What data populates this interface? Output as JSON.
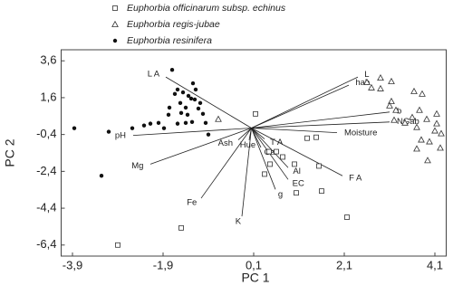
{
  "chart_data": {
    "type": "scatter",
    "x_label": "PC 1",
    "y_label": "PC 2",
    "xlim": [
      -4.15,
      4.35
    ],
    "ylim": [
      -7.0,
      4.2
    ],
    "xticks": [
      {
        "value": -3.9,
        "label": "-3,9"
      },
      {
        "value": -1.9,
        "label": "-1,9"
      },
      {
        "value": 0.1,
        "label": "0,1"
      },
      {
        "value": 2.1,
        "label": "2,1"
      },
      {
        "value": 4.1,
        "label": "4,1"
      }
    ],
    "yticks": [
      {
        "value": 3.6,
        "label": "3,6"
      },
      {
        "value": 1.6,
        "label": "1,6"
      },
      {
        "value": -0.4,
        "label": "-0,4"
      },
      {
        "value": -2.4,
        "label": "-2,4"
      },
      {
        "value": -4.4,
        "label": "-4,4"
      },
      {
        "value": -6.4,
        "label": "-6,4"
      }
    ],
    "series": [
      {
        "name": "Euphorbia officinarum subsp. echinus",
        "marker": "square",
        "color": "#333333",
        "x": [
          -2.9,
          -1.5,
          0.14,
          1.28,
          1.48,
          0.6,
          0.74,
          0.46,
          1.0,
          0.34,
          1.04,
          1.6,
          1.54,
          2.16,
          0.44
        ],
        "values": [
          -6.4,
          -5.47,
          0.72,
          -0.6,
          -0.55,
          -1.33,
          -1.62,
          -2.01,
          -2.01,
          -2.55,
          -3.57,
          -3.47,
          -2.11,
          -4.89,
          -1.33
        ]
      },
      {
        "name": "Euphorbia regis-jubae",
        "marker": "triangle",
        "color": "#333333",
        "x": [
          2.6,
          2.9,
          3.14,
          2.7,
          2.9,
          3.14,
          3.64,
          3.82,
          3.1,
          3.24,
          3.44,
          3.6,
          3.76,
          4.14,
          3.92,
          4.14,
          3.7,
          4.1,
          4.24,
          3.8,
          3.98,
          4.22,
          3.7,
          3.94,
          3.2,
          -0.68
        ],
        "values": [
          2.43,
          2.67,
          2.48,
          2.14,
          2.09,
          1.4,
          1.94,
          1.8,
          1.16,
          0.92,
          0.23,
          0.53,
          0.92,
          0.72,
          0.43,
          0.19,
          -0.01,
          -0.2,
          -0.35,
          -0.69,
          -0.79,
          -1.13,
          -1.18,
          -1.81,
          0.38,
          0.43
        ]
      },
      {
        "name": "Euphorbia resinifera",
        "marker": "circle",
        "color": "#111111",
        "x": [
          -3.86,
          -3.1,
          -3.26,
          -2.58,
          -2.32,
          -2.18,
          -2.0,
          -1.88,
          -1.78,
          -1.7,
          -1.64,
          -1.58,
          -1.52,
          -1.46,
          -1.4,
          -1.34,
          -1.28,
          -1.2,
          -1.36,
          -1.12,
          -1.4,
          -1.58,
          -1.5,
          -1.26,
          -1.18,
          -1.08,
          -1.02,
          -0.96,
          -1.24,
          -0.9,
          -1.76
        ],
        "values": [
          -0.06,
          -0.25,
          -2.64,
          -0.06,
          0.09,
          0.19,
          0.23,
          -0.06,
          0.67,
          3.11,
          1.8,
          2.04,
          1.31,
          1.89,
          1.06,
          1.7,
          1.55,
          1.5,
          0.67,
          1.01,
          0.23,
          0.19,
          0.77,
          0.28,
          2.04,
          1.31,
          0.72,
          0.23,
          2.38,
          -0.4,
          1.06
        ]
      }
    ],
    "origin": {
      "x": 0.05,
      "y": -0.05
    },
    "vectors": [
      {
        "label": "L A",
        "x": -1.84,
        "y": 2.72
      },
      {
        "label": "pH",
        "x": -2.56,
        "y": -0.45
      },
      {
        "label": "Mg",
        "x": -2.18,
        "y": -2.01
      },
      {
        "label": "Fe",
        "x": -1.06,
        "y": -3.86
      },
      {
        "label": "K",
        "x": -0.16,
        "y": -4.84
      },
      {
        "label": "Ash",
        "x": -0.24,
        "y": -0.69
      },
      {
        "label": "Hue",
        "x": 0.0,
        "y": -0.7
      },
      {
        "label": "T A",
        "x": 0.34,
        "y": -0.64
      },
      {
        "label": "Ca",
        "x": 0.26,
        "y": -1.1
      },
      {
        "label": "g",
        "x": 0.58,
        "y": -3.38
      },
      {
        "label": "EC",
        "x": 0.86,
        "y": -2.84
      },
      {
        "label": "Al",
        "x": 0.86,
        "y": -2.2
      },
      {
        "label": "F A",
        "x": 2.06,
        "y": -2.64
      },
      {
        "label": "Moisture",
        "x": 1.94,
        "y": -0.3
      },
      {
        "label": "NGab",
        "x": 3.1,
        "y": 0.28
      },
      {
        "label": "b",
        "x": 3.1,
        "y": 0.82
      },
      {
        "label": "hab",
        "x": 2.2,
        "y": 2.28
      },
      {
        "label": "L",
        "x": 2.4,
        "y": 2.72
      }
    ]
  }
}
